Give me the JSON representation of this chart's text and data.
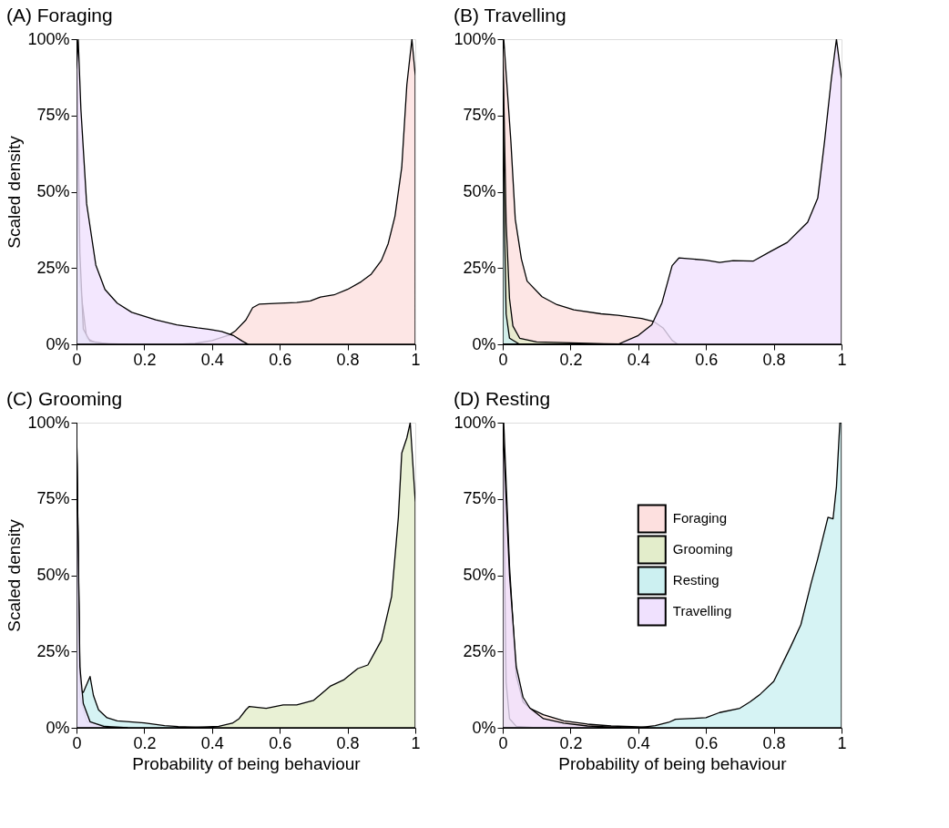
{
  "chart_data": [
    {
      "type": "area",
      "title": "(A) Foraging",
      "ylabel": "Scaled density",
      "xlim": [
        0,
        1
      ],
      "ylim": [
        0,
        100
      ],
      "xticks": [
        0,
        0.2,
        0.4,
        0.6,
        0.8,
        1
      ],
      "yticks": [
        {
          "value": 0,
          "label": "0%"
        },
        {
          "value": 25,
          "label": "25%"
        },
        {
          "value": 50,
          "label": "50%"
        },
        {
          "value": 75,
          "label": "75%"
        },
        {
          "value": 100,
          "label": "100%"
        }
      ],
      "legend": false,
      "series": [
        {
          "color": "#fde0df",
          "x": [
            0,
            0.3,
            0.35,
            0.4,
            0.45,
            0.47,
            0.5,
            0.52,
            0.54,
            0.6,
            0.65,
            0.69,
            0.72,
            0.76,
            0.8,
            0.84,
            0.87,
            0.9,
            0.92,
            0.94,
            0.96,
            0.975,
            0.99,
            1
          ],
          "values": [
            0,
            0,
            0.3,
            1.2,
            3,
            4.5,
            8,
            12,
            13.2,
            13.5,
            13.7,
            14.2,
            15.5,
            16.2,
            18,
            20.5,
            23,
            27.5,
            33,
            42,
            58,
            85,
            100,
            88
          ]
        },
        {
          "color": "#e3edcb",
          "x": [
            0,
            0.01,
            0.03,
            0.06,
            0.15
          ],
          "values": [
            100,
            20,
            2,
            0.3,
            0
          ]
        },
        {
          "color": "#ccf0f1",
          "x": [
            0,
            0.01,
            0.02,
            0.04,
            0.1
          ],
          "values": [
            100,
            30,
            5,
            1,
            0
          ]
        },
        {
          "color": "#f0e1fe",
          "x": [
            0,
            0.005,
            0.013,
            0.03,
            0.057,
            0.084,
            0.12,
            0.163,
            0.234,
            0.296,
            0.357,
            0.393,
            0.428,
            0.463,
            0.49,
            0.507
          ],
          "values": [
            90,
            100,
            77,
            46,
            26,
            18,
            13.5,
            10.5,
            8,
            6.4,
            5.4,
            4.9,
            4.2,
            2.9,
            1,
            0
          ]
        }
      ]
    },
    {
      "type": "area",
      "title": "(B) Travelling",
      "xlim": [
        0,
        1
      ],
      "ylim": [
        0,
        100
      ],
      "xticks": [
        0,
        0.2,
        0.4,
        0.6,
        0.8,
        1
      ],
      "yticks": [
        {
          "value": 0,
          "label": "0%"
        },
        {
          "value": 25,
          "label": "25%"
        },
        {
          "value": 50,
          "label": "50%"
        },
        {
          "value": 75,
          "label": "75%"
        },
        {
          "value": 100,
          "label": "100%"
        }
      ],
      "legend": false,
      "series": [
        {
          "color": "#fde0df",
          "x": [
            0,
            0.003,
            0.024,
            0.037,
            0.055,
            0.072,
            0.116,
            0.16,
            0.21,
            0.29,
            0.34,
            0.41,
            0.447,
            0.473,
            0.5,
            0.517
          ],
          "values": [
            95,
            100,
            66.6,
            41,
            28,
            20.7,
            15.6,
            13,
            11.3,
            10,
            9.5,
            8.5,
            7.4,
            5.4,
            1.3,
            0
          ]
        },
        {
          "color": "#e3edcb",
          "x": [
            0,
            0.01,
            0.02,
            0.03,
            0.05,
            0.1,
            0.3,
            0.4
          ],
          "values": [
            100,
            40,
            15,
            6,
            2,
            0.8,
            0.2,
            0
          ]
        },
        {
          "color": "#ccf0f1",
          "x": [
            0,
            0.005,
            0.01,
            0.02,
            0.05
          ],
          "values": [
            100,
            40,
            10,
            2,
            0
          ]
        },
        {
          "color": "#f0e1fe",
          "x": [
            0,
            0.34,
            0.4,
            0.44,
            0.47,
            0.5,
            0.52,
            0.6,
            0.64,
            0.68,
            0.74,
            0.79,
            0.84,
            0.9,
            0.93,
            0.95,
            0.97,
            0.985,
            1
          ],
          "values": [
            0,
            0,
            2.9,
            6.4,
            13.6,
            25.8,
            28.3,
            27.6,
            26.8,
            27.4,
            27.3,
            30.4,
            33.4,
            40,
            48,
            66.6,
            87,
            100,
            87
          ]
        }
      ]
    },
    {
      "type": "area",
      "title": "(C) Grooming",
      "xlabel": "Probability of being behaviour",
      "ylabel": "Scaled density",
      "xlim": [
        0,
        1
      ],
      "ylim": [
        0,
        100
      ],
      "xticks": [
        0,
        0.2,
        0.4,
        0.6,
        0.8,
        1
      ],
      "yticks": [
        {
          "value": 0,
          "label": "0%"
        },
        {
          "value": 25,
          "label": "25%"
        },
        {
          "value": 50,
          "label": "50%"
        },
        {
          "value": 75,
          "label": "75%"
        },
        {
          "value": 100,
          "label": "100%"
        }
      ],
      "legend": false,
      "series": [
        {
          "color": "#fde0df",
          "x": [
            0,
            0.01,
            0.03,
            0.1,
            0.2
          ],
          "values": [
            100,
            10,
            2,
            0.3,
            0
          ]
        },
        {
          "color": "#e3edcb",
          "x": [
            0,
            0.3,
            0.35,
            0.42,
            0.46,
            0.48,
            0.5,
            0.51,
            0.56,
            0.61,
            0.65,
            0.7,
            0.75,
            0.79,
            0.83,
            0.86,
            0.9,
            0.93,
            0.95,
            0.96,
            0.975,
            0.985,
            1
          ],
          "values": [
            0,
            0,
            0.2,
            0.5,
            1.5,
            3,
            5.9,
            7,
            6.4,
            7.5,
            7.5,
            9,
            13.7,
            15.8,
            19.4,
            20.6,
            28.7,
            43,
            69,
            90,
            95,
            100,
            74
          ]
        },
        {
          "color": "#ccf0f1",
          "x": [
            0,
            0.01,
            0.015,
            0.02,
            0.04,
            0.05,
            0.065,
            0.09,
            0.12,
            0.2,
            0.26,
            0.3,
            0.4
          ],
          "values": [
            100,
            17,
            12,
            11.6,
            16.8,
            10.6,
            5.9,
            3.3,
            2.3,
            1.6,
            0.7,
            0.4,
            0
          ]
        },
        {
          "color": "#f0e1fe",
          "x": [
            0,
            0.01,
            0.02,
            0.04,
            0.08,
            0.15
          ],
          "values": [
            100,
            20,
            8,
            2,
            0.5,
            0
          ]
        }
      ]
    },
    {
      "type": "area",
      "title": "(D) Resting",
      "xlabel": "Probability of being behaviour",
      "xlim": [
        0,
        1
      ],
      "ylim": [
        0,
        100
      ],
      "xticks": [
        0,
        0.2,
        0.4,
        0.6,
        0.8,
        1
      ],
      "yticks": [
        {
          "value": 0,
          "label": "0%"
        },
        {
          "value": 25,
          "label": "25%"
        },
        {
          "value": 50,
          "label": "50%"
        },
        {
          "value": 75,
          "label": "75%"
        },
        {
          "value": 100,
          "label": "100%"
        }
      ],
      "legend": "right",
      "series": [
        {
          "name": "Foraging",
          "color": "#fde0df",
          "x": [
            0,
            0.003,
            0.02,
            0.04,
            0.06,
            0.08,
            0.12,
            0.18,
            0.25,
            0.32,
            0.4,
            0.45
          ],
          "values": [
            95,
            100,
            53,
            17,
            8.5,
            6.4,
            4.3,
            2.3,
            1.2,
            0.6,
            0.3,
            0
          ]
        },
        {
          "name": "Grooming",
          "color": "#e3edcb",
          "x": [
            0,
            0.01,
            0.02,
            0.04,
            0.1
          ],
          "values": [
            100,
            15,
            3,
            0.5,
            0
          ]
        },
        {
          "name": "Resting",
          "color": "#ccf0f1",
          "x": [
            0,
            0.4,
            0.45,
            0.49,
            0.51,
            0.55,
            0.6,
            0.64,
            0.7,
            0.73,
            0.76,
            0.8,
            0.85,
            0.88,
            0.91,
            0.93,
            0.96,
            0.975,
            0.985,
            0.995,
            1
          ],
          "values": [
            0,
            0,
            0.7,
            1.8,
            2.8,
            3,
            3.3,
            5,
            6.4,
            8.5,
            11,
            15.2,
            26.6,
            33.8,
            47.3,
            55.5,
            69,
            68.5,
            79,
            100,
            100
          ]
        },
        {
          "name": "Travelling",
          "color": "#f0e1fe",
          "x": [
            0,
            0.02,
            0.04,
            0.06,
            0.08,
            0.12,
            0.18,
            0.25,
            0.35,
            0.4
          ],
          "values": [
            100,
            50,
            20,
            10,
            6.5,
            3,
            1.5,
            0.6,
            0.1,
            0
          ]
        }
      ]
    }
  ]
}
